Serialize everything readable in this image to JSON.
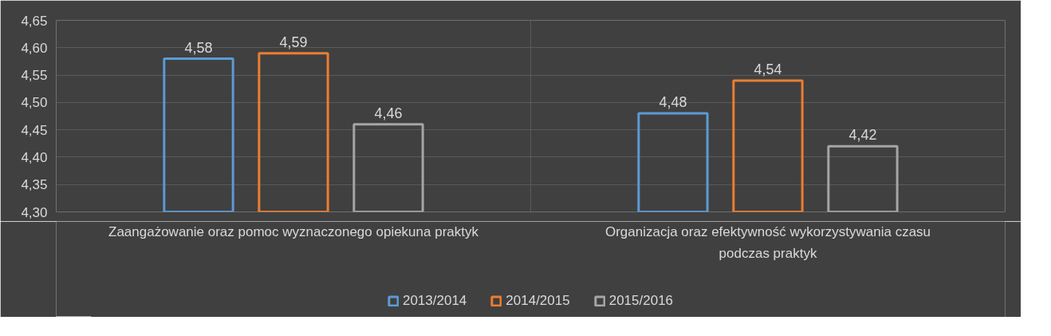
{
  "chart_data": {
    "type": "bar",
    "categories": [
      "Zaangażowanie oraz pomoc wyznaczonego opiekuna praktyk",
      "Organizacja oraz efektywność wykorzystywania czasu podczas praktyk"
    ],
    "series": [
      {
        "name": "2013/2014",
        "color": "#5b9bd5",
        "values": [
          4.58,
          4.48
        ],
        "value_labels": [
          "4,58",
          "4,48"
        ]
      },
      {
        "name": "2014/2015",
        "color": "#ed7d31",
        "values": [
          4.59,
          4.54
        ],
        "value_labels": [
          "4,59",
          "4,54"
        ]
      },
      {
        "name": "2015/2016",
        "color": "#a5a5a5",
        "values": [
          4.46,
          4.42
        ],
        "value_labels": [
          "4,46",
          "4,42"
        ]
      }
    ],
    "ylim": [
      4.3,
      4.65
    ],
    "yticks": [
      {
        "value": 4.3,
        "label": "4,30"
      },
      {
        "value": 4.35,
        "label": "4,35"
      },
      {
        "value": 4.4,
        "label": "4,40"
      },
      {
        "value": 4.45,
        "label": "4,45"
      },
      {
        "value": 4.5,
        "label": "4,50"
      },
      {
        "value": 4.55,
        "label": "4,55"
      },
      {
        "value": 4.6,
        "label": "4,60"
      },
      {
        "value": 4.65,
        "label": "4,65"
      }
    ],
    "grid": true,
    "legend": "bottom"
  }
}
